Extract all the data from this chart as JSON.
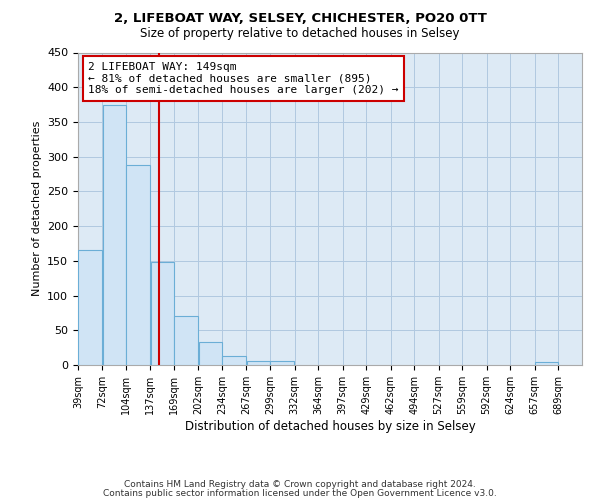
{
  "title1": "2, LIFEBOAT WAY, SELSEY, CHICHESTER, PO20 0TT",
  "title2": "Size of property relative to detached houses in Selsey",
  "xlabel": "Distribution of detached houses by size in Selsey",
  "ylabel": "Number of detached properties",
  "bar_left_edges": [
    39,
    72,
    104,
    137,
    169,
    202,
    234,
    267,
    299,
    332,
    364,
    397,
    429,
    462,
    494,
    527,
    559,
    592,
    624,
    657
  ],
  "bar_widths": [
    33,
    32,
    33,
    32,
    33,
    32,
    33,
    32,
    33,
    32,
    33,
    32,
    33,
    32,
    33,
    32,
    33,
    32,
    33,
    32
  ],
  "bar_heights": [
    165,
    375,
    288,
    148,
    70,
    33,
    13,
    6,
    6,
    0,
    0,
    0,
    0,
    0,
    0,
    0,
    0,
    0,
    0,
    5
  ],
  "bar_color": "#d0e4f5",
  "bar_edge_color": "#6baed6",
  "tick_labels": [
    "39sqm",
    "72sqm",
    "104sqm",
    "137sqm",
    "169sqm",
    "202sqm",
    "234sqm",
    "267sqm",
    "299sqm",
    "332sqm",
    "364sqm",
    "397sqm",
    "429sqm",
    "462sqm",
    "494sqm",
    "527sqm",
    "559sqm",
    "592sqm",
    "624sqm",
    "657sqm",
    "689sqm"
  ],
  "tick_positions": [
    39,
    72,
    104,
    137,
    169,
    202,
    234,
    267,
    299,
    332,
    364,
    397,
    429,
    462,
    494,
    527,
    559,
    592,
    624,
    657,
    689
  ],
  "vline_x": 149,
  "vline_color": "#cc0000",
  "annotation_title": "2 LIFEBOAT WAY: 149sqm",
  "annotation_line1": "← 81% of detached houses are smaller (895)",
  "annotation_line2": "18% of semi-detached houses are larger (202) →",
  "annotation_box_facecolor": "#ffffff",
  "annotation_box_edgecolor": "#cc0000",
  "ylim": [
    0,
    450
  ],
  "yticks": [
    0,
    50,
    100,
    150,
    200,
    250,
    300,
    350,
    400,
    450
  ],
  "xlim_min": 39,
  "xlim_max": 721,
  "bg_color": "#ffffff",
  "plot_bg_color": "#ddeaf5",
  "grid_color": "#b0c8e0",
  "footer1": "Contains HM Land Registry data © Crown copyright and database right 2024.",
  "footer2": "Contains public sector information licensed under the Open Government Licence v3.0."
}
